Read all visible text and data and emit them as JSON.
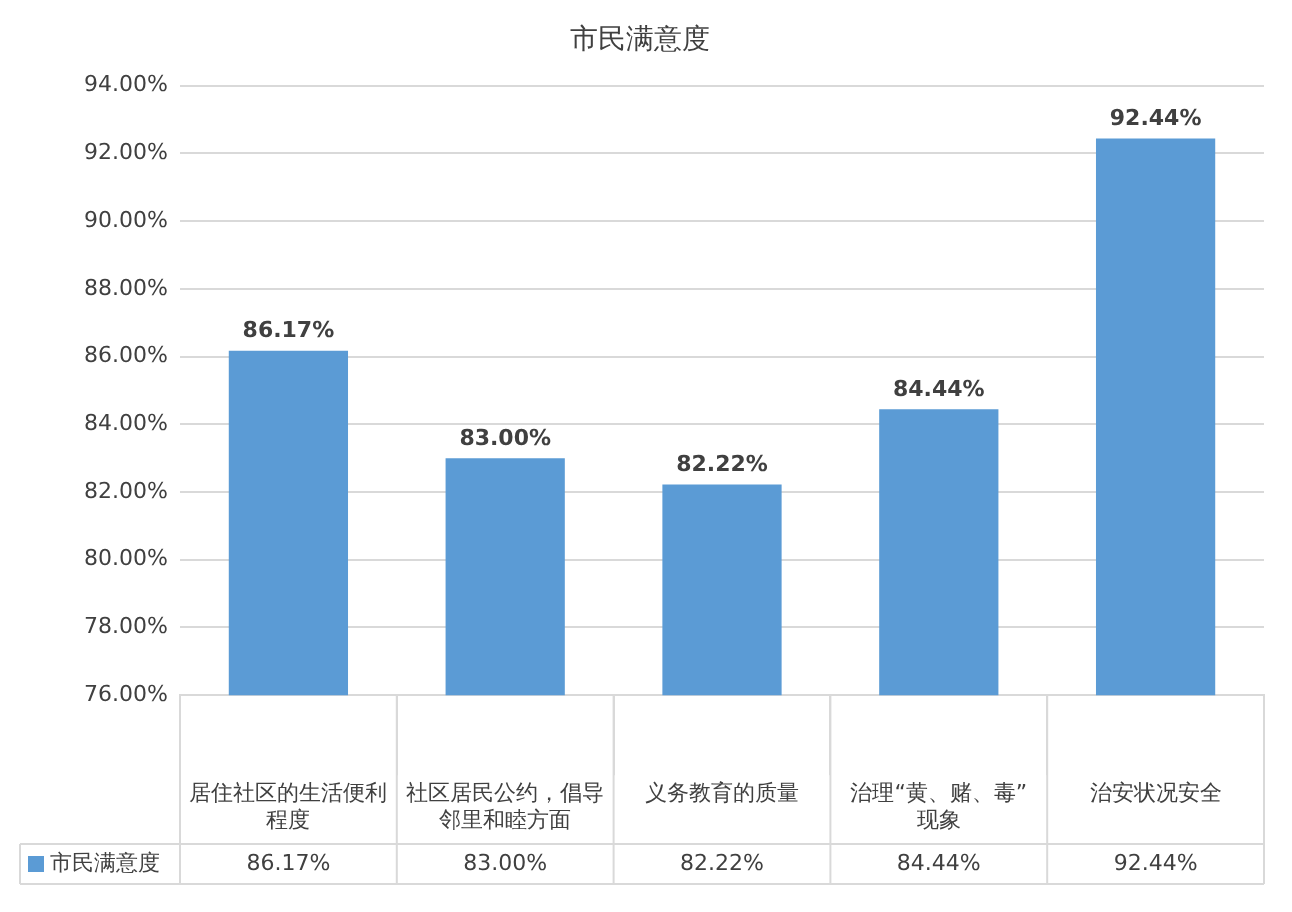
{
  "chart_data": {
    "type": "bar",
    "title": "市民满意度",
    "categories": [
      "居住社区的生活便利程度",
      "社区居民公约，倡导邻里和睦方面",
      "义务教育的质量",
      "治理“黄、赌、毒”现象",
      "治安状况安全"
    ],
    "series": [
      {
        "name": "市民满意度",
        "color": "#5b9bd5",
        "values": [
          86.17,
          83.0,
          82.22,
          84.44,
          92.44
        ],
        "value_labels": [
          "86.17%",
          "83.00%",
          "82.22%",
          "84.44%",
          "92.44%"
        ]
      }
    ],
    "ylim": [
      76,
      94
    ],
    "yticks": [
      {
        "value": 76,
        "label": "76.00%"
      },
      {
        "value": 78,
        "label": "78.00%"
      },
      {
        "value": 80,
        "label": "80.00%"
      },
      {
        "value": 82,
        "label": "82.00%"
      },
      {
        "value": 84,
        "label": "84.00%"
      },
      {
        "value": 86,
        "label": "86.00%"
      },
      {
        "value": 88,
        "label": "88.00%"
      },
      {
        "value": 90,
        "label": "90.00%"
      },
      {
        "value": 92,
        "label": "92.00%"
      },
      {
        "value": 94,
        "label": "94.00%"
      }
    ],
    "grid": "y",
    "legend": "bottom"
  }
}
